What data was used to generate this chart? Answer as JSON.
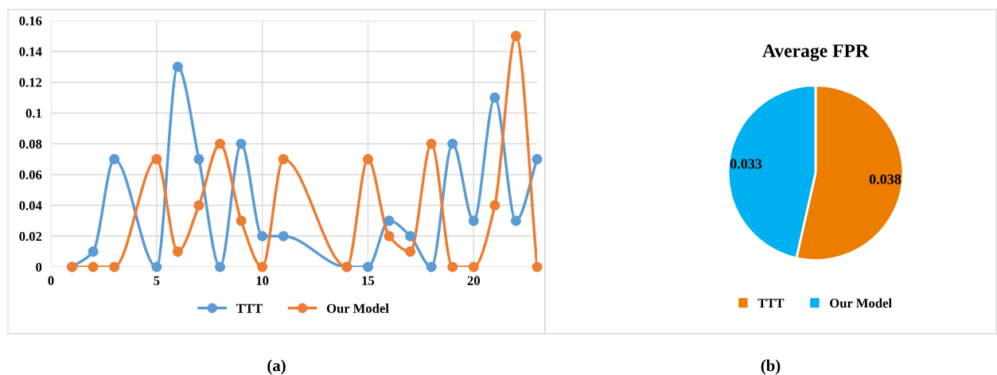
{
  "chart_data": [
    {
      "type": "line",
      "x": [
        1,
        2,
        3,
        5,
        6,
        7,
        8,
        9,
        10,
        11,
        14,
        15,
        16,
        17,
        18,
        19,
        20,
        21,
        22,
        23
      ],
      "series": [
        {
          "name": "TTT",
          "color": "#5b9bd5",
          "values": [
            0,
            0.01,
            0.07,
            0,
            0.13,
            0.07,
            0,
            0.08,
            0.02,
            0.02,
            0,
            0,
            0.03,
            0.02,
            0,
            0.08,
            0.03,
            0.11,
            0.03,
            0.07
          ]
        },
        {
          "name": "Our Model",
          "color": "#ed7d31",
          "values": [
            0,
            0,
            0,
            0.07,
            0.01,
            0.04,
            0.08,
            0.03,
            0,
            0.07,
            0,
            0.07,
            0.02,
            0.01,
            0.08,
            0,
            0,
            0.04,
            0.15,
            0
          ]
        }
      ],
      "xlim": [
        0,
        23
      ],
      "xticks": [
        0,
        5,
        10,
        15,
        20
      ],
      "ylim": [
        0,
        0.16
      ],
      "yticks": [
        0,
        0.02,
        0.04,
        0.06,
        0.08,
        0.1,
        0.12,
        0.14,
        0.16
      ],
      "grid": true,
      "legend": "bottom",
      "marker": "circle",
      "line_style": "solid",
      "annotations": [
        "(a)"
      ]
    },
    {
      "type": "pie",
      "title": "Average FPR",
      "categories": [
        "TTT",
        "Our Model"
      ],
      "values": [
        0.038,
        0.033
      ],
      "colors": [
        "#ed7d00",
        "#00b0f0"
      ],
      "data_labels": true,
      "legend": "bottom",
      "annotations": [
        "(b)"
      ]
    }
  ]
}
